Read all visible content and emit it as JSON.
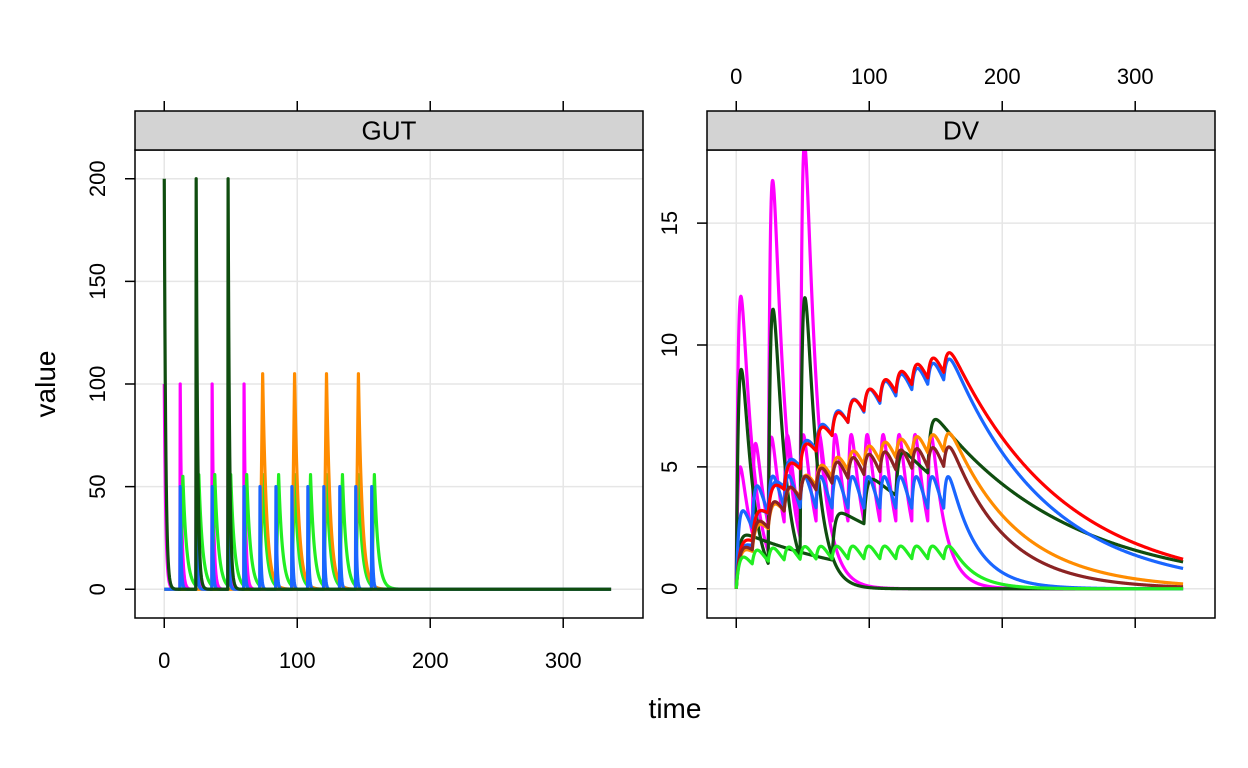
{
  "chart_data": {
    "type": "line",
    "xlabel": "time",
    "ylabel": "value",
    "grid": true,
    "series_colors": [
      "#ff00ff",
      "#ff0000",
      "#1a66ff",
      "#ff8c00",
      "#22ee22",
      "#8b2323",
      "#0f4d0f"
    ],
    "panels": [
      {
        "strip": "GUT",
        "xlim": [
          -22,
          360
        ],
        "ylim": [
          -14,
          214
        ],
        "xticks": [
          0,
          100,
          200,
          300
        ],
        "xtick_labels": [
          "0",
          "100",
          "200",
          "300"
        ],
        "yticks": [
          0,
          50,
          100,
          150,
          200
        ],
        "ytick_labels": [
          "0",
          "50",
          "100",
          "150",
          "200"
        ],
        "series": [
          {
            "color": "#ff00ff",
            "dose": 100,
            "doses": [
              0,
              12,
              24,
              36,
              48,
              60
            ],
            "ka": 0.9
          },
          {
            "color": "#22ee22",
            "dose": 55,
            "doses": [
              12,
              24,
              36,
              48,
              60,
              72,
              84,
              96,
              108,
              120,
              132,
              144,
              156
            ],
            "ka": 0.35,
            "rise": 2
          },
          {
            "color": "#ff8c00",
            "dose": 105,
            "doses": [
              72,
              96,
              120,
              144
            ],
            "ka": 0.35,
            "rise": 2
          },
          {
            "color": "#1a66ff",
            "dose": 50,
            "doses": [
              12,
              24,
              36,
              48,
              60,
              72,
              84,
              96,
              108,
              120,
              132,
              144,
              156
            ],
            "ka": 1.5
          },
          {
            "color": "#0f4d0f",
            "dose": 200,
            "doses": [
              0,
              24,
              48
            ],
            "ka": 0.9
          }
        ]
      },
      {
        "strip": "DV",
        "xlim": [
          -22,
          360
        ],
        "ylim": [
          -1.2,
          18
        ],
        "xticks": [
          0,
          100,
          200,
          300
        ],
        "xtick_labels": [
          "0",
          "100",
          "200",
          "300"
        ],
        "yticks": [
          0,
          5,
          10,
          15
        ],
        "ytick_labels": [
          "0",
          "5",
          "10",
          "15"
        ],
        "series": [
          {
            "color": "#ff00ff",
            "doses": [
              [
                0,
                12.0
              ],
              [
                24,
                15.7
              ],
              [
                48,
                16.8
              ]
            ],
            "ka": 0.6,
            "kel": 0.11
          },
          {
            "color": "#ff00ff",
            "doses": [
              [
                0,
                5.0
              ],
              [
                12,
                4.2
              ],
              [
                24,
                4.2
              ],
              [
                36,
                4.2
              ],
              [
                48,
                4.2
              ],
              [
                60,
                4.2
              ],
              [
                72,
                4.2
              ],
              [
                84,
                4.2
              ],
              [
                96,
                4.2
              ],
              [
                108,
                4.2
              ],
              [
                120,
                4.2
              ],
              [
                132,
                4.2
              ],
              [
                144,
                4.2
              ]
            ],
            "ka": 0.8,
            "kel": 0.1
          },
          {
            "color": "#0f4d0f",
            "doses": [
              [
                0,
                9.0
              ],
              [
                24,
                10.8
              ],
              [
                48,
                11.1
              ]
            ],
            "ka": 0.5,
            "kel": 0.12
          },
          {
            "color": "#0f4d0f",
            "doses": [
              [
                0,
                2.2
              ],
              [
                72,
                2.0
              ],
              [
                96,
                2.0
              ],
              [
                120,
                2.0
              ],
              [
                144,
                2.5
              ]
            ],
            "ka": 0.5,
            "kel": 0.01
          },
          {
            "color": "#1a66ff",
            "doses": [
              [
                0,
                1.8
              ],
              [
                12,
                1.6
              ],
              [
                24,
                1.6
              ],
              [
                36,
                1.5
              ],
              [
                48,
                1.5
              ],
              [
                60,
                1.5
              ],
              [
                72,
                1.5
              ],
              [
                84,
                1.5
              ],
              [
                96,
                1.5
              ],
              [
                108,
                1.5
              ],
              [
                120,
                1.5
              ],
              [
                132,
                1.5
              ],
              [
                144,
                1.5
              ],
              [
                156,
                1.5
              ]
            ],
            "ka": 0.4,
            "kel": 0.014
          },
          {
            "color": "#1a66ff",
            "doses": [
              [
                0,
                3.2
              ],
              [
                12,
                2.2
              ],
              [
                24,
                2.1
              ],
              [
                36,
                1.9
              ],
              [
                48,
                1.9
              ],
              [
                60,
                1.9
              ],
              [
                72,
                1.9
              ],
              [
                84,
                1.9
              ],
              [
                96,
                1.9
              ],
              [
                108,
                1.9
              ],
              [
                120,
                1.9
              ],
              [
                132,
                1.9
              ],
              [
                144,
                1.9
              ],
              [
                156,
                1.9
              ]
            ],
            "ka": 0.5,
            "kel": 0.05
          },
          {
            "color": "#ff0000",
            "doses": [
              [
                0,
                2.0
              ],
              [
                12,
                1.4
              ],
              [
                24,
                1.4
              ],
              [
                36,
                1.4
              ],
              [
                48,
                1.4
              ],
              [
                60,
                1.4
              ],
              [
                72,
                1.4
              ],
              [
                84,
                1.4
              ],
              [
                96,
                1.4
              ],
              [
                108,
                1.4
              ],
              [
                120,
                1.4
              ],
              [
                132,
                1.4
              ],
              [
                144,
                1.4
              ],
              [
                156,
                1.4
              ]
            ],
            "ka": 0.4,
            "kel": 0.012
          },
          {
            "color": "#ff8c00",
            "doses": [
              [
                0,
                1.6
              ],
              [
                12,
                1.3
              ],
              [
                24,
                1.3
              ],
              [
                36,
                1.3
              ],
              [
                48,
                1.3
              ],
              [
                60,
                1.3
              ],
              [
                72,
                1.3
              ],
              [
                84,
                1.3
              ],
              [
                96,
                1.3
              ],
              [
                108,
                1.3
              ],
              [
                120,
                1.3
              ],
              [
                132,
                1.3
              ],
              [
                144,
                1.3
              ],
              [
                156,
                1.3
              ]
            ],
            "ka": 0.4,
            "kel": 0.02
          },
          {
            "color": "#8b2323",
            "doses": [
              [
                0,
                1.7
              ],
              [
                12,
                1.4
              ],
              [
                24,
                1.4
              ],
              [
                36,
                1.4
              ],
              [
                48,
                1.4
              ],
              [
                60,
                1.4
              ],
              [
                72,
                1.4
              ],
              [
                84,
                1.4
              ],
              [
                96,
                1.4
              ],
              [
                108,
                1.4
              ],
              [
                120,
                1.4
              ],
              [
                132,
                1.4
              ],
              [
                144,
                1.4
              ],
              [
                156,
                1.4
              ]
            ],
            "ka": 0.4,
            "kel": 0.025
          },
          {
            "color": "#22ee22",
            "doses": [
              [
                0,
                1.3
              ],
              [
                12,
                0.8
              ],
              [
                24,
                0.8
              ],
              [
                36,
                0.8
              ],
              [
                48,
                0.8
              ],
              [
                60,
                0.8
              ],
              [
                72,
                0.8
              ],
              [
                84,
                0.8
              ],
              [
                96,
                0.8
              ],
              [
                108,
                0.8
              ],
              [
                120,
                0.8
              ],
              [
                132,
                0.8
              ],
              [
                144,
                0.8
              ],
              [
                156,
                0.8
              ]
            ],
            "ka": 0.4,
            "kel": 0.06
          }
        ]
      }
    ]
  }
}
